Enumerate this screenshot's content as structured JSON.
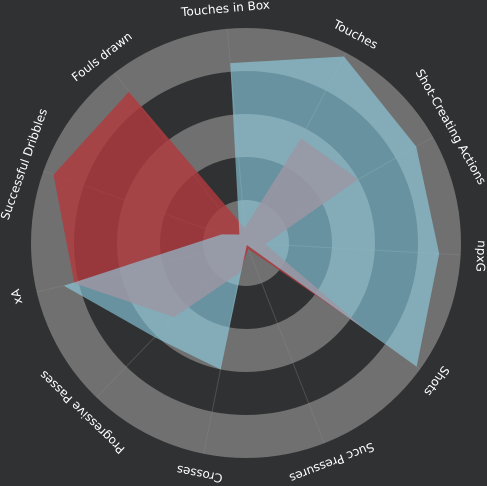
{
  "chart_data": {
    "type": "radar",
    "axes": [
      "Touches in Box",
      "Touches",
      "Shot-Creating Actions",
      "npxG",
      "Shots",
      "Succ Pressures",
      "Crosses",
      "Progressive Passes",
      "xA",
      "Successful Dribbles",
      "Fouls drawn"
    ],
    "r_range": [
      0,
      100
    ],
    "ring_levels": [
      20,
      40,
      60,
      80,
      100
    ],
    "grid": true,
    "legend": "none",
    "series": [
      {
        "color": "#b03a3e",
        "values": [
          7,
          55,
          60,
          9,
          68,
          3,
          14,
          48,
          82,
          95,
          89
        ]
      },
      {
        "color": "#8fd3e8",
        "values": [
          84,
          98,
          91,
          90,
          98,
          1,
          60,
          61,
          87,
          12,
          5
        ]
      }
    ]
  }
}
